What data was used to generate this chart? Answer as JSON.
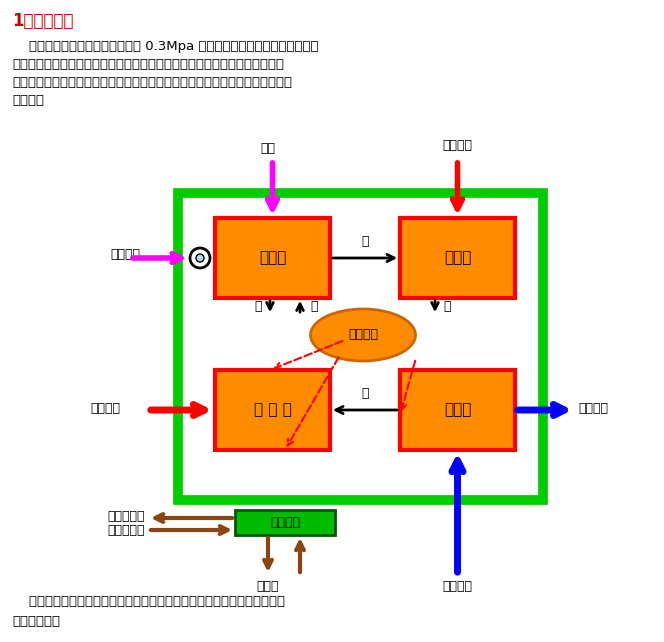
{
  "title_text": "1、结构组成",
  "title_color": "#CC0000",
  "body_text1": "    蝠汽型渴化销吸收式热泵机组以 0.3Mpa 以上蝠汽产生的热能为驱动热源，",
  "body_text2": "渴化销溶液为吸收剂，水为蝠发剂，利用水在低压真空状态下低沸点沸腾的特",
  "body_text3": "性，提取低品位废热源中的热量，通过回收转换制取工艺性、采暖或生活用高品",
  "body_text4": "位热水。",
  "footer_text1": "    吸收式热泵机组由发生器、冷凝器、蝠发器、吸收器、热交换器及自动控",
  "footer_text2": "制系统组成。",
  "label_generator": "发生器",
  "label_condenser": "冷凝器",
  "label_absorber": "吸 收 器",
  "label_evaporator": "蝠发器",
  "label_aux": "辅助设备",
  "label_control": "控制系统",
  "label_condensate": "凝水",
  "label_supply_heat_out": "供热水出",
  "label_drive_steam": "驱动蝠汽",
  "label_supply_heat_in": "供热水进",
  "label_waste_heat_out": "余热水出",
  "label_waste_heat_in": "余热水进",
  "label_steam1": "汽",
  "label_steam2": "汽",
  "label_solution": "溶",
  "label_liquid": "液",
  "label_water": "水",
  "label_ctrl_sig_out": "控制信号出",
  "label_run_sig_out": "运行信号出",
  "label_elec_out": "电量出",
  "box_orange": "#FF8C00",
  "box_border_red": "#FF0000",
  "box_border_green": "#00CC00",
  "box_green_bg": "#00BB00",
  "ellipse_orange": "#FF8C00",
  "ellipse_border": "#CC6600",
  "arrow_black": "#000000",
  "arrow_red": "#FF0000",
  "arrow_magenta": "#FF00FF",
  "arrow_blue": "#0000FF",
  "arrow_brown": "#8B4513",
  "bg_color": "#FFFFFF",
  "font_color": "#000000"
}
